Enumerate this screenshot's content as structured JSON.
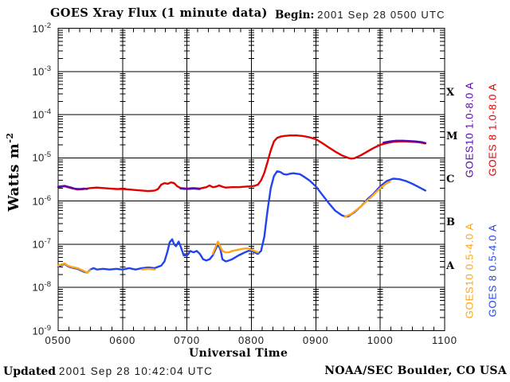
{
  "header": {
    "title": "GOES Xray Flux (1 minute data)",
    "begin_label": "Begin:",
    "begin_value": "2001 Sep 28 0500 UTC"
  },
  "footer": {
    "updated_label": "Updated",
    "updated_value": "2001 Sep 28 10:42:04 UTC",
    "credit": "NOAA/SEC Boulder, CO USA"
  },
  "chart_data": {
    "type": "line",
    "title": "GOES Xray Flux (1 minute data)",
    "xlabel": "Universal Time",
    "ylabel": {
      "base": "Watts m",
      "exponent": "-2"
    },
    "xlim": [
      5,
      11
    ],
    "ylim": [
      1e-09,
      0.01
    ],
    "x_axis": {
      "ticks": [
        {
          "t": 5,
          "label": "0500"
        },
        {
          "t": 6,
          "label": "0600"
        },
        {
          "t": 7,
          "label": "0700"
        },
        {
          "t": 8,
          "label": "0800"
        },
        {
          "t": 9,
          "label": "0900"
        },
        {
          "t": 10,
          "label": "1000"
        },
        {
          "t": 11,
          "label": "1100"
        }
      ],
      "minor_tick_minutes": 10
    },
    "y_axis": {
      "scale": "log",
      "mantissa": "10",
      "exponents": [
        -2,
        -3,
        -4,
        -5,
        -6,
        -7,
        -8,
        -9
      ]
    },
    "flare_classes": [
      {
        "label": "X",
        "center_exponent": -3.5
      },
      {
        "label": "M",
        "center_exponent": -4.5
      },
      {
        "label": "C",
        "center_exponent": -5.5
      },
      {
        "label": "B",
        "center_exponent": -6.5
      },
      {
        "label": "A",
        "center_exponent": -7.5
      }
    ],
    "grid": "on",
    "legend_position": "right-rotated",
    "series": [
      {
        "name": "GOES10 1.0-8.0 A",
        "color": "#5505ad",
        "segments": [
          [
            [
              5.0,
              2.15e-06
            ],
            [
              5.05,
              2.2e-06
            ],
            [
              5.1,
              2.25e-06
            ],
            [
              5.15,
              2.15e-06
            ],
            [
              5.2,
              2.05e-06
            ],
            [
              5.25,
              1.95e-06
            ],
            [
              5.3,
              1.9e-06
            ],
            [
              5.35,
              1.9e-06
            ],
            [
              5.4,
              1.95e-06
            ],
            [
              5.45,
              1.9e-06
            ]
          ],
          [
            [
              6.9,
              1.95e-06
            ],
            [
              7.0,
              1.9e-06
            ],
            [
              7.1,
              1.95e-06
            ],
            [
              7.2,
              1.9e-06
            ]
          ],
          [
            [
              10.05,
              2.25e-05
            ],
            [
              10.15,
              2.4e-05
            ],
            [
              10.25,
              2.5e-05
            ],
            [
              10.35,
              2.5e-05
            ],
            [
              10.45,
              2.45e-05
            ],
            [
              10.55,
              2.4e-05
            ],
            [
              10.65,
              2.3e-05
            ],
            [
              10.7,
              2.2e-05
            ]
          ]
        ]
      },
      {
        "name": "GOES 8 1.0-8.0 A",
        "color": "#e00000",
        "segments": [
          [
            [
              5.0,
              2.1e-06
            ],
            [
              5.05,
              2.15e-06
            ],
            [
              5.1,
              2.2e-06
            ],
            [
              5.15,
              2.1e-06
            ],
            [
              5.2,
              2e-06
            ],
            [
              5.3,
              1.85e-06
            ],
            [
              5.4,
              1.9e-06
            ],
            [
              5.5,
              2e-06
            ],
            [
              5.6,
              2.05e-06
            ],
            [
              5.7,
              2e-06
            ],
            [
              5.8,
              1.95e-06
            ],
            [
              5.9,
              1.9e-06
            ],
            [
              6.0,
              1.9e-06
            ],
            [
              6.1,
              1.85e-06
            ],
            [
              6.2,
              1.8e-06
            ],
            [
              6.3,
              1.75e-06
            ],
            [
              6.4,
              1.7e-06
            ],
            [
              6.5,
              1.75e-06
            ],
            [
              6.55,
              1.9e-06
            ],
            [
              6.6,
              2.4e-06
            ],
            [
              6.65,
              2.6e-06
            ],
            [
              6.7,
              2.5e-06
            ],
            [
              6.75,
              2.7e-06
            ],
            [
              6.8,
              2.6e-06
            ],
            [
              6.85,
              2.2e-06
            ],
            [
              6.9,
              2e-06
            ],
            [
              7.0,
              1.95e-06
            ],
            [
              7.1,
              2e-06
            ],
            [
              7.2,
              1.95e-06
            ],
            [
              7.3,
              2.1e-06
            ],
            [
              7.35,
              2.3e-06
            ],
            [
              7.4,
              2.1e-06
            ],
            [
              7.45,
              2.15e-06
            ],
            [
              7.5,
              2.3e-06
            ],
            [
              7.55,
              2.15e-06
            ],
            [
              7.6,
              2.05e-06
            ],
            [
              7.7,
              2.1e-06
            ],
            [
              7.8,
              2.1e-06
            ],
            [
              7.9,
              2.15e-06
            ],
            [
              8.0,
              2.2e-06
            ],
            [
              8.05,
              2.25e-06
            ],
            [
              8.1,
              2.4e-06
            ],
            [
              8.15,
              3e-06
            ],
            [
              8.2,
              4.5e-06
            ],
            [
              8.25,
              8e-06
            ],
            [
              8.3,
              1.5e-05
            ],
            [
              8.35,
              2.4e-05
            ],
            [
              8.4,
              2.9e-05
            ],
            [
              8.45,
              3.1e-05
            ],
            [
              8.5,
              3.2e-05
            ],
            [
              8.6,
              3.3e-05
            ],
            [
              8.7,
              3.3e-05
            ],
            [
              8.8,
              3.2e-05
            ],
            [
              8.9,
              3e-05
            ],
            [
              9.0,
              2.7e-05
            ],
            [
              9.1,
              2.2e-05
            ],
            [
              9.2,
              1.75e-05
            ],
            [
              9.3,
              1.4e-05
            ],
            [
              9.4,
              1.15e-05
            ],
            [
              9.5,
              1e-05
            ],
            [
              9.55,
              9.6e-06
            ],
            [
              9.6,
              9.8e-06
            ],
            [
              9.7,
              1.15e-05
            ],
            [
              9.8,
              1.4e-05
            ],
            [
              9.9,
              1.7e-05
            ],
            [
              10.0,
              2e-05
            ],
            [
              10.1,
              2.2e-05
            ],
            [
              10.2,
              2.35e-05
            ],
            [
              10.3,
              2.4e-05
            ],
            [
              10.4,
              2.4e-05
            ],
            [
              10.5,
              2.35e-05
            ],
            [
              10.6,
              2.3e-05
            ],
            [
              10.7,
              2.15e-05
            ]
          ]
        ]
      },
      {
        "name": "GOES10 0.5-4.0 A",
        "color": "#ffa513",
        "segments": [
          [
            [
              5.0,
              3.2e-08
            ],
            [
              5.05,
              3.4e-08
            ],
            [
              5.1,
              3.6e-08
            ],
            [
              5.15,
              3.2e-08
            ],
            [
              5.2,
              3e-08
            ],
            [
              5.25,
              2.9e-08
            ],
            [
              5.3,
              2.8e-08
            ],
            [
              5.35,
              2.6e-08
            ],
            [
              5.4,
              2.4e-08
            ],
            [
              5.45,
              2.2e-08
            ],
            [
              5.5,
              2.5e-08
            ]
          ],
          [
            [
              6.3,
              2.6e-08
            ],
            [
              6.4,
              2.7e-08
            ],
            [
              6.5,
              2.6e-08
            ]
          ],
          [
            [
              7.4,
              6e-08
            ],
            [
              7.45,
              9e-08
            ],
            [
              7.48,
              1.15e-07
            ],
            [
              7.52,
              8.5e-08
            ],
            [
              7.55,
              7e-08
            ],
            [
              7.6,
              6.5e-08
            ],
            [
              7.65,
              6.5e-08
            ],
            [
              7.7,
              7e-08
            ],
            [
              7.8,
              7.5e-08
            ],
            [
              7.9,
              8e-08
            ],
            [
              7.95,
              8e-08
            ],
            [
              8.0,
              7.5e-08
            ],
            [
              8.05,
              7e-08
            ],
            [
              8.1,
              6.5e-08
            ]
          ],
          [
            [
              9.45,
              4.3e-07
            ],
            [
              9.55,
              5e-07
            ],
            [
              9.7,
              7.5e-07
            ],
            [
              9.85,
              1.2e-06
            ],
            [
              10.0,
              2e-06
            ],
            [
              10.1,
              2.6e-06
            ],
            [
              10.15,
              2.8e-06
            ]
          ]
        ]
      },
      {
        "name": "GOES 8 0.5-4.0 A",
        "color": "#2244ee",
        "segments": [
          [
            [
              5.0,
              3e-08
            ],
            [
              5.05,
              3.3e-08
            ],
            [
              5.1,
              3.5e-08
            ],
            [
              5.15,
              3.1e-08
            ],
            [
              5.2,
              2.9e-08
            ],
            [
              5.3,
              2.7e-08
            ],
            [
              5.4,
              2.3e-08
            ],
            [
              5.45,
              2.2e-08
            ],
            [
              5.5,
              2.6e-08
            ],
            [
              5.55,
              2.8e-08
            ],
            [
              5.6,
              2.6e-08
            ],
            [
              5.7,
              2.7e-08
            ],
            [
              5.8,
              2.6e-08
            ],
            [
              5.9,
              2.7e-08
            ],
            [
              6.0,
              2.6e-08
            ],
            [
              6.1,
              2.8e-08
            ],
            [
              6.2,
              2.6e-08
            ],
            [
              6.3,
              2.8e-08
            ],
            [
              6.4,
              2.9e-08
            ],
            [
              6.5,
              2.8e-08
            ],
            [
              6.55,
              3e-08
            ],
            [
              6.6,
              3.2e-08
            ],
            [
              6.65,
              4e-08
            ],
            [
              6.7,
              7e-08
            ],
            [
              6.73,
              1.1e-07
            ],
            [
              6.77,
              1.3e-07
            ],
            [
              6.8,
              1e-07
            ],
            [
              6.83,
              9e-08
            ],
            [
              6.87,
              1.15e-07
            ],
            [
              6.9,
              9e-08
            ],
            [
              6.95,
              5.5e-08
            ],
            [
              7.0,
              5.5e-08
            ],
            [
              7.05,
              7e-08
            ],
            [
              7.1,
              6.5e-08
            ],
            [
              7.15,
              7e-08
            ],
            [
              7.2,
              6e-08
            ],
            [
              7.25,
              4.5e-08
            ],
            [
              7.3,
              4.2e-08
            ],
            [
              7.35,
              4.5e-08
            ],
            [
              7.4,
              5.5e-08
            ],
            [
              7.45,
              8e-08
            ],
            [
              7.48,
              1e-07
            ],
            [
              7.52,
              7.5e-08
            ],
            [
              7.55,
              4.5e-08
            ],
            [
              7.6,
              4e-08
            ],
            [
              7.65,
              4.2e-08
            ],
            [
              7.7,
              4.5e-08
            ],
            [
              7.75,
              5e-08
            ],
            [
              7.8,
              5.5e-08
            ],
            [
              7.85,
              6e-08
            ],
            [
              7.9,
              6.5e-08
            ],
            [
              7.95,
              7e-08
            ],
            [
              8.0,
              7e-08
            ],
            [
              8.05,
              6.5e-08
            ],
            [
              8.1,
              6e-08
            ],
            [
              8.15,
              7e-08
            ],
            [
              8.2,
              1.5e-07
            ],
            [
              8.25,
              6e-07
            ],
            [
              8.3,
              2e-06
            ],
            [
              8.35,
              3.8e-06
            ],
            [
              8.4,
              4.9e-06
            ],
            [
              8.45,
              4.7e-06
            ],
            [
              8.5,
              4.2e-06
            ],
            [
              8.55,
              4.1e-06
            ],
            [
              8.6,
              4.3e-06
            ],
            [
              8.65,
              4.4e-06
            ],
            [
              8.7,
              4.3e-06
            ],
            [
              8.75,
              4.2e-06
            ],
            [
              8.8,
              3.8e-06
            ],
            [
              8.9,
              3e-06
            ],
            [
              9.0,
              2.2e-06
            ],
            [
              9.1,
              1.4e-06
            ],
            [
              9.2,
              9e-07
            ],
            [
              9.3,
              6e-07
            ],
            [
              9.4,
              4.7e-07
            ],
            [
              9.45,
              4.4e-07
            ],
            [
              9.5,
              4.4e-07
            ],
            [
              9.6,
              5.5e-07
            ],
            [
              9.7,
              7.5e-07
            ],
            [
              9.8,
              1.1e-06
            ],
            [
              9.9,
              1.5e-06
            ],
            [
              10.0,
              2.2e-06
            ],
            [
              10.1,
              2.9e-06
            ],
            [
              10.2,
              3.3e-06
            ],
            [
              10.3,
              3.2e-06
            ],
            [
              10.4,
              2.9e-06
            ],
            [
              10.5,
              2.5e-06
            ],
            [
              10.6,
              2.1e-06
            ],
            [
              10.7,
              1.75e-06
            ]
          ]
        ]
      }
    ]
  }
}
